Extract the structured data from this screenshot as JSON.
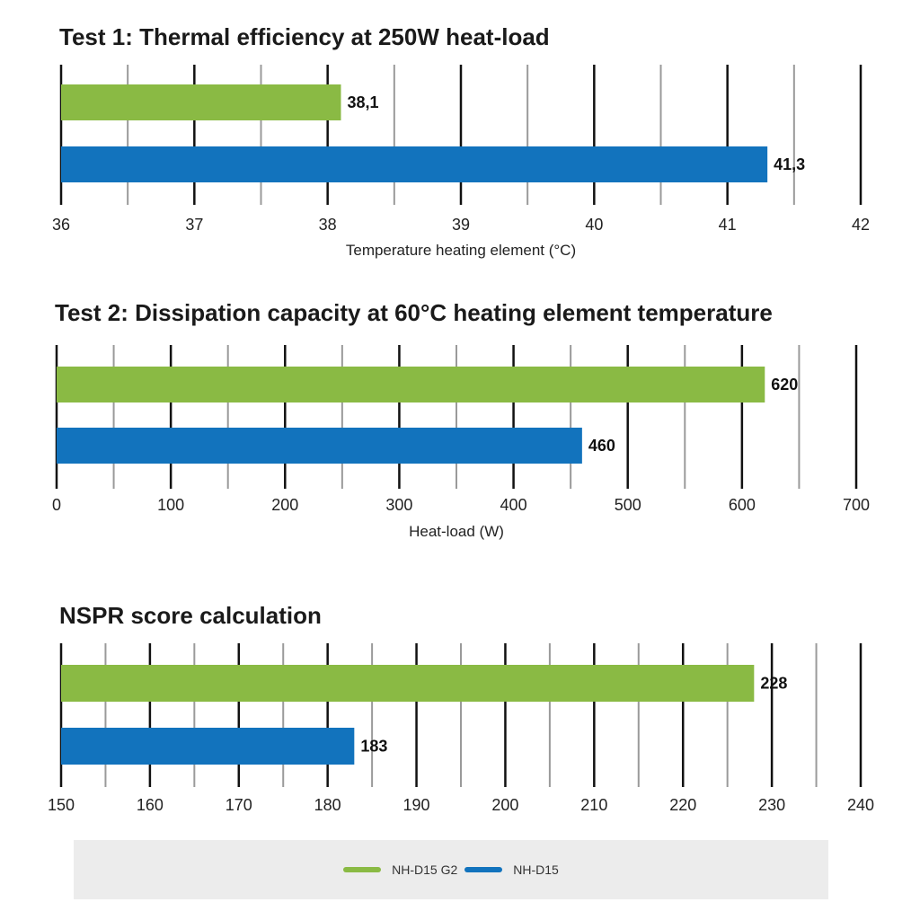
{
  "colors": {
    "green": "#8aba44",
    "blue": "#1273bd",
    "major_grid": "#111111",
    "minor_grid": "#9a9a9a"
  },
  "chart_data": [
    {
      "type": "bar",
      "orientation": "horizontal",
      "title": "Test 1: Thermal efficiency at 250W heat-load",
      "xlabel": "Temperature heating element (°C)",
      "xlim": [
        36,
        42
      ],
      "major_ticks": [
        36,
        37,
        38,
        39,
        40,
        41,
        42
      ],
      "tick_labels": [
        "36",
        "37",
        "38",
        "39",
        "40",
        "41",
        "42"
      ],
      "minor_step": 0.5,
      "series": [
        {
          "name": "NH-D15 G2",
          "value": 38.1,
          "label": "38,1"
        },
        {
          "name": "NH-D15",
          "value": 41.3,
          "label": "41,3"
        }
      ]
    },
    {
      "type": "bar",
      "orientation": "horizontal",
      "title": "Test 2: Dissipation capacity at 60°C heating element temperature",
      "xlabel": "Heat-load (W)",
      "xlim": [
        0,
        700
      ],
      "major_ticks": [
        0,
        100,
        200,
        300,
        400,
        500,
        600,
        700
      ],
      "tick_labels": [
        "0",
        "100",
        "200",
        "300",
        "400",
        "500",
        "600",
        "700"
      ],
      "minor_step": 50,
      "series": [
        {
          "name": "NH-D15 G2",
          "value": 620,
          "label": "620"
        },
        {
          "name": "NH-D15",
          "value": 460,
          "label": "460"
        }
      ]
    },
    {
      "type": "bar",
      "orientation": "horizontal",
      "title": "NSPR score calculation",
      "xlabel": "",
      "xlim": [
        150,
        240
      ],
      "major_ticks": [
        150,
        160,
        170,
        180,
        190,
        200,
        210,
        220,
        230,
        240
      ],
      "tick_labels": [
        "150",
        "160",
        "170",
        "180",
        "190",
        "200",
        "210",
        "220",
        "230",
        "240"
      ],
      "minor_step": 5,
      "series": [
        {
          "name": "NH-D15 G2",
          "value": 228,
          "label": "228"
        },
        {
          "name": "NH-D15",
          "value": 183,
          "label": "183"
        }
      ]
    }
  ],
  "legend": {
    "placement": "bottom",
    "items": [
      {
        "label": "NH-D15 G2",
        "color": "#8aba44"
      },
      {
        "label": "NH-D15",
        "color": "#1273bd"
      }
    ]
  }
}
